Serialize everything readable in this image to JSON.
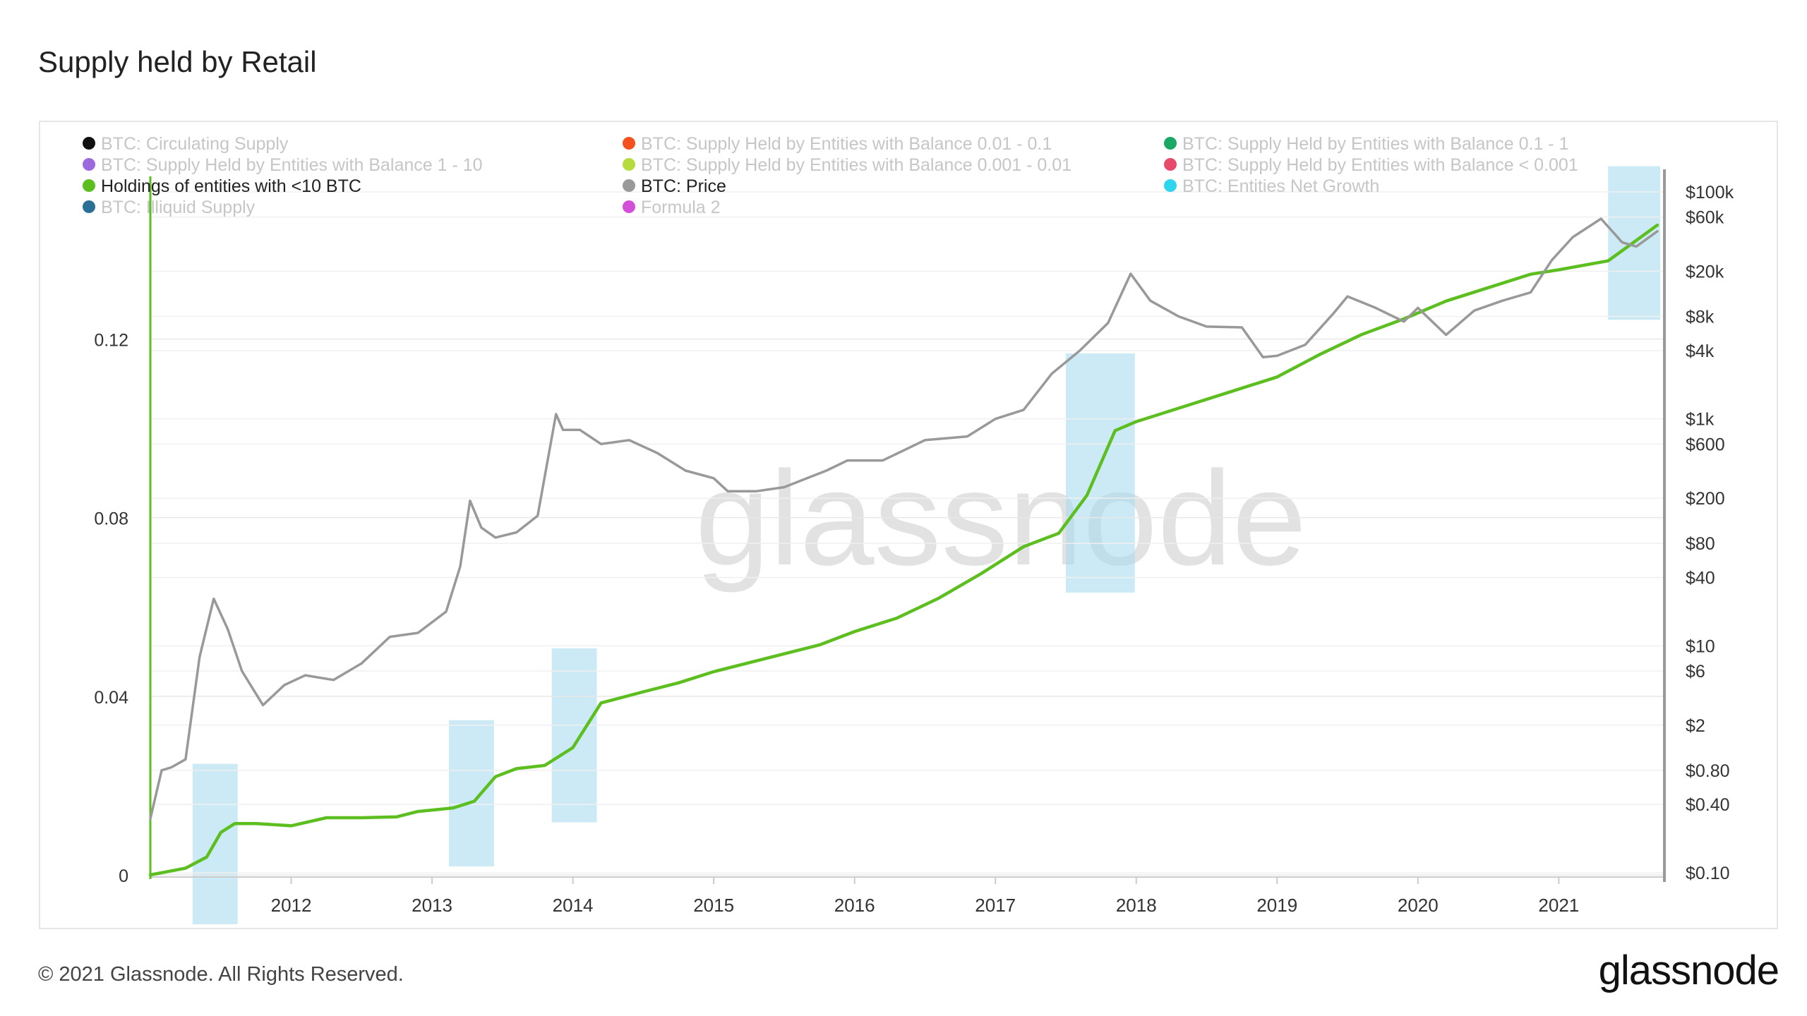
{
  "header": {
    "title": "Supply held by Retail"
  },
  "footer": {
    "copyright": "© 2021 Glassnode. All Rights Reserved.",
    "brand": "glassnode"
  },
  "watermark": "glassnode",
  "legend": [
    {
      "label": "BTC: Circulating Supply",
      "color": "#111111",
      "active": false
    },
    {
      "label": "BTC: Supply Held by Entities with Balance 0.01 - 0.1",
      "color": "#f4511e",
      "active": false
    },
    {
      "label": "BTC: Supply Held by Entities with Balance 0.1 - 1",
      "color": "#1aa866",
      "active": false
    },
    {
      "label": "BTC: Supply Held by Entities with Balance 1 - 10",
      "color": "#9c6ade",
      "active": false
    },
    {
      "label": "BTC: Supply Held by Entities with Balance 0.001 - 0.01",
      "color": "#b5dc3c",
      "active": false
    },
    {
      "label": "BTC: Supply Held by Entities with Balance < 0.001",
      "color": "#e84a6b",
      "active": false
    },
    {
      "label": "Holdings of entities with <10 BTC",
      "color": "#5cbf1f",
      "active": true
    },
    {
      "label": "BTC: Price",
      "color": "#999999",
      "active": true
    },
    {
      "label": "BTC: Entities Net Growth",
      "color": "#2fd4ee",
      "active": false
    },
    {
      "label": "BTC: Illiquid Supply",
      "color": "#2b6f96",
      "active": false
    },
    {
      "label": "Formula 2",
      "color": "#d44fd8",
      "active": false
    }
  ],
  "chart_data": {
    "type": "line",
    "x_ticks": [
      "2012",
      "2013",
      "2014",
      "2015",
      "2016",
      "2017",
      "2018",
      "2019",
      "2020",
      "2021"
    ],
    "y_left": {
      "ticks": [
        0,
        0.04,
        0.08,
        0.12
      ],
      "tick_labels": [
        "0",
        "0.04",
        "0.08",
        "0.12"
      ],
      "range": [
        0,
        0.158
      ]
    },
    "y_right": {
      "scale": "log",
      "tick_values": [
        0.1,
        0.4,
        0.8,
        2,
        6,
        10,
        40,
        80,
        200,
        600,
        1000,
        4000,
        8000,
        20000,
        60000,
        100000
      ],
      "tick_labels": [
        "$0.10",
        "$0.40",
        "$0.80",
        "$2",
        "$6",
        "$10",
        "$40",
        "$80",
        "$200",
        "$600",
        "$1k",
        "$4k",
        "$8k",
        "$20k",
        "$60k",
        "$100k"
      ]
    },
    "series": [
      {
        "name": "Holdings of entities with <10 BTC",
        "color": "#5cbf1f",
        "axis": "left",
        "x": [
          2011.0,
          2011.25,
          2011.4,
          2011.5,
          2011.6,
          2011.75,
          2012.0,
          2012.25,
          2012.5,
          2012.75,
          2012.9,
          2013.15,
          2013.3,
          2013.45,
          2013.6,
          2013.8,
          2014.0,
          2014.2,
          2014.5,
          2014.75,
          2015.0,
          2015.5,
          2015.75,
          2016.0,
          2016.3,
          2016.6,
          2016.9,
          2017.2,
          2017.45,
          2017.65,
          2017.85,
          2018.0,
          2018.3,
          2018.7,
          2019.0,
          2019.3,
          2019.6,
          2019.9,
          2020.2,
          2020.5,
          2020.8,
          2021.0,
          2021.35,
          2021.7
        ],
        "values": [
          0.0,
          0.0015,
          0.004,
          0.0095,
          0.0115,
          0.0115,
          0.011,
          0.0128,
          0.0128,
          0.013,
          0.0142,
          0.015,
          0.0165,
          0.022,
          0.0238,
          0.0245,
          0.0285,
          0.0385,
          0.041,
          0.043,
          0.0455,
          0.0495,
          0.0515,
          0.0545,
          0.0575,
          0.062,
          0.0675,
          0.0735,
          0.0765,
          0.085,
          0.0995,
          0.1015,
          0.1045,
          0.1085,
          0.1115,
          0.1165,
          0.121,
          0.1245,
          0.1285,
          0.1315,
          0.1345,
          0.1355,
          0.1375,
          0.1455
        ]
      },
      {
        "name": "BTC: Price",
        "color": "#999999",
        "axis": "right",
        "x": [
          2011.0,
          2011.08,
          2011.15,
          2011.25,
          2011.35,
          2011.45,
          2011.55,
          2011.65,
          2011.8,
          2011.95,
          2012.1,
          2012.3,
          2012.5,
          2012.7,
          2012.9,
          2013.1,
          2013.2,
          2013.27,
          2013.35,
          2013.45,
          2013.6,
          2013.75,
          2013.88,
          2013.93,
          2014.05,
          2014.2,
          2014.4,
          2014.6,
          2014.8,
          2015.0,
          2015.1,
          2015.3,
          2015.5,
          2015.8,
          2015.95,
          2016.2,
          2016.5,
          2016.8,
          2017.0,
          2017.2,
          2017.4,
          2017.6,
          2017.8,
          2017.96,
          2018.1,
          2018.3,
          2018.5,
          2018.75,
          2018.9,
          2019.0,
          2019.2,
          2019.4,
          2019.5,
          2019.7,
          2019.9,
          2020.0,
          2020.2,
          2020.4,
          2020.6,
          2020.8,
          2020.95,
          2021.1,
          2021.3,
          2021.45,
          2021.55,
          2021.7
        ],
        "values": [
          0.3,
          0.8,
          0.85,
          1.0,
          8.0,
          26.0,
          14.0,
          6.0,
          3.0,
          4.5,
          5.5,
          5.0,
          7.0,
          12.0,
          13.0,
          20.0,
          50.0,
          190.0,
          110.0,
          90.0,
          100.0,
          140.0,
          1100.0,
          800.0,
          800.0,
          600.0,
          650.0,
          500.0,
          350.0,
          300.0,
          230.0,
          230.0,
          250.0,
          350.0,
          430.0,
          430.0,
          650.0,
          700.0,
          1000.0,
          1200.0,
          2500.0,
          4000.0,
          7000.0,
          19000.0,
          11000.0,
          8000.0,
          6500.0,
          6400.0,
          3500.0,
          3600.0,
          4500.0,
          8500.0,
          12000.0,
          9500.0,
          7200.0,
          9500.0,
          5500.0,
          9000.0,
          11000.0,
          13000.0,
          25000.0,
          40000.0,
          58000.0,
          36000.0,
          33000.0,
          45000.0
        ]
      }
    ],
    "highlight_periods": [
      [
        2011.3,
        2011.62
      ],
      [
        2013.12,
        2013.44
      ],
      [
        2013.85,
        2014.17
      ],
      [
        2017.5,
        2017.99
      ],
      [
        2021.35,
        2021.72
      ]
    ]
  }
}
